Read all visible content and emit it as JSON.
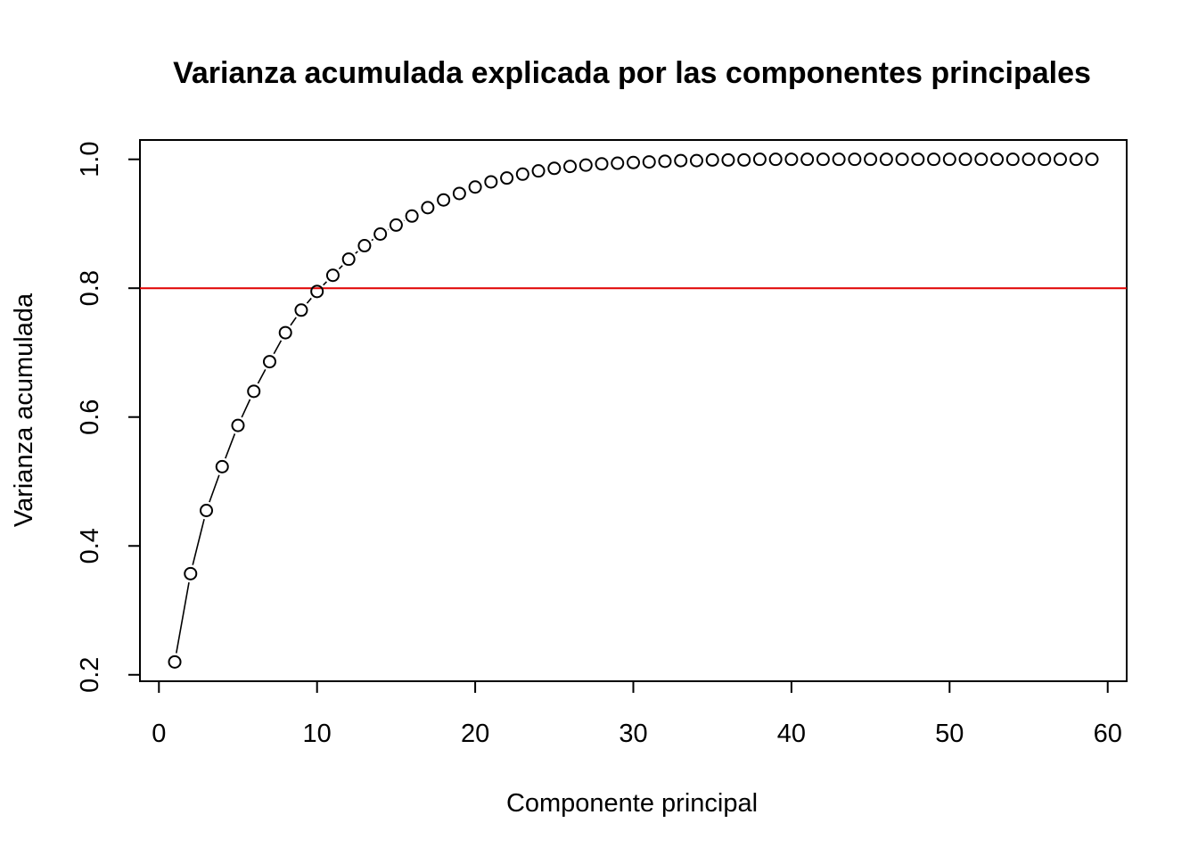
{
  "chart_data": {
    "type": "scatter",
    "title": "Varianza acumulada explicada por las componentes principales",
    "xlabel": "Componente principal",
    "ylabel": "Varianza acumulada",
    "xlim": [
      -1.2,
      61.2
    ],
    "ylim": [
      0.19,
      1.03
    ],
    "xticks": [
      0,
      10,
      20,
      30,
      40,
      50,
      60
    ],
    "yticks": [
      0.2,
      0.4,
      0.6,
      0.8,
      1.0
    ],
    "xtick_labels": [
      "0",
      "10",
      "20",
      "30",
      "40",
      "50",
      "60"
    ],
    "ytick_labels": [
      "0.2",
      "0.4",
      "0.6",
      "0.8",
      "1.0"
    ],
    "grid": false,
    "reference_line": {
      "y": 0.8,
      "color": "#e00000"
    },
    "point_color": "#000000",
    "line_color": "#000000",
    "series": [
      {
        "type": "overplotted-line-points",
        "x": [
          1,
          2,
          3,
          4,
          5,
          6,
          7,
          8,
          9,
          10,
          11,
          12,
          13,
          14,
          15,
          16,
          17,
          18,
          19,
          20,
          21,
          22,
          23,
          24,
          25,
          26,
          27,
          28,
          29,
          30,
          31,
          32,
          33,
          34,
          35,
          36,
          37,
          38,
          39,
          40,
          41,
          42,
          43,
          44,
          45,
          46,
          47,
          48,
          49,
          50,
          51,
          52,
          53,
          54,
          55,
          56,
          57,
          58,
          59
        ],
        "y": [
          0.22,
          0.357,
          0.455,
          0.523,
          0.587,
          0.64,
          0.686,
          0.731,
          0.766,
          0.795,
          0.82,
          0.845,
          0.866,
          0.884,
          0.898,
          0.912,
          0.925,
          0.937,
          0.947,
          0.957,
          0.965,
          0.971,
          0.977,
          0.982,
          0.986,
          0.989,
          0.991,
          0.993,
          0.994,
          0.995,
          0.996,
          0.997,
          0.998,
          0.998,
          0.999,
          0.999,
          0.999,
          1.0,
          1.0,
          1.0,
          1.0,
          1.0,
          1.0,
          1.0,
          1.0,
          1.0,
          1.0,
          1.0,
          1.0,
          1.0,
          1.0,
          1.0,
          1.0,
          1.0,
          1.0,
          1.0,
          1.0,
          1.0,
          1.0
        ]
      }
    ]
  }
}
